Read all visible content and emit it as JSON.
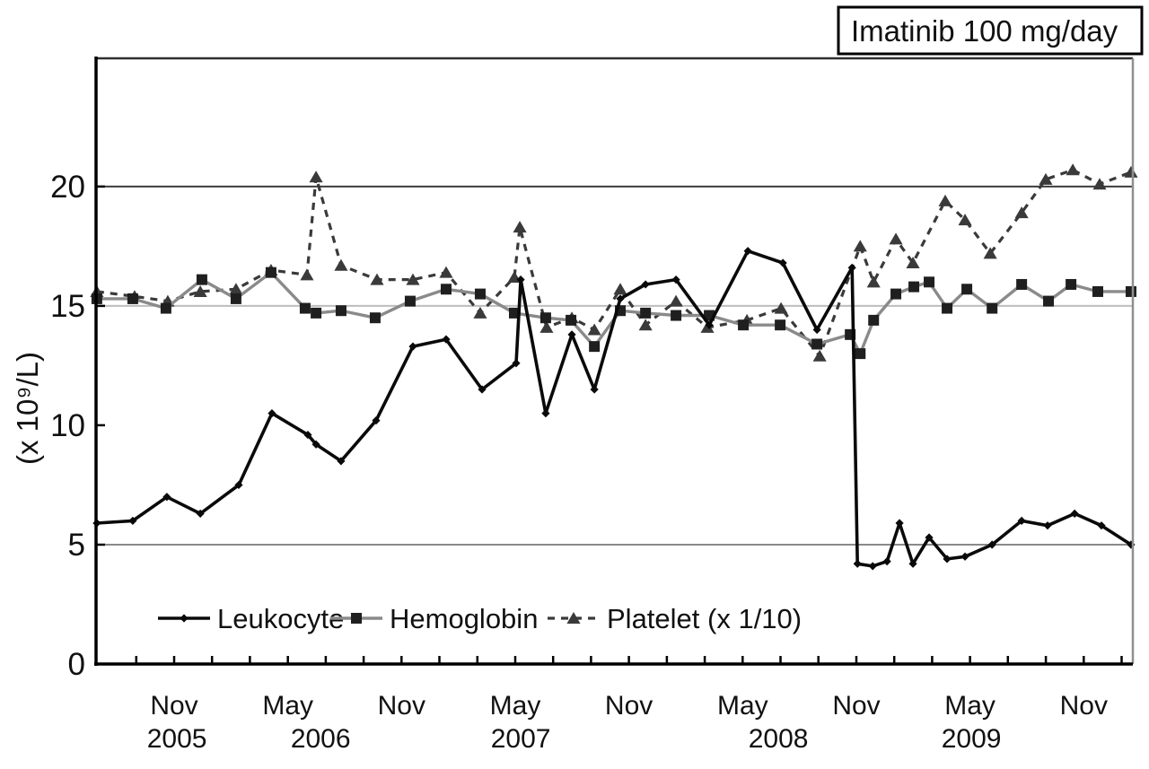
{
  "annotation": {
    "label": "Imatinib 100 mg/day"
  },
  "y_axis": {
    "label": "(x 10⁹/L)",
    "ticks": [
      0,
      5,
      10,
      15,
      20
    ],
    "max": 25.37,
    "gridlines": [
      {
        "v": 5,
        "color": "#8a8a8a",
        "w": 2
      },
      {
        "v": 15,
        "color": "#bdbdbd",
        "w": 2
      },
      {
        "v": 20,
        "color": "#3d3d3d",
        "w": 2
      }
    ]
  },
  "x_axis": {
    "tick_start": 2005.7083,
    "tick_step": 0.1666667,
    "tick_end": 2010.05,
    "month_labels": [
      {
        "label": "Nov",
        "t": 2005.875
      },
      {
        "label": "May",
        "t": 2006.375
      },
      {
        "label": "Nov",
        "t": 2006.875
      },
      {
        "label": "May",
        "t": 2007.375
      },
      {
        "label": "Nov",
        "t": 2007.875
      },
      {
        "label": "May",
        "t": 2008.375
      },
      {
        "label": "Nov",
        "t": 2008.875
      },
      {
        "label": "May",
        "t": 2009.375
      },
      {
        "label": "Nov",
        "t": 2009.875
      }
    ],
    "year_labels": [
      {
        "label": "2005",
        "t": 2005.887
      },
      {
        "label": "2006",
        "t": 2006.519
      },
      {
        "label": "2007",
        "t": 2007.399
      },
      {
        "label": "2008",
        "t": 2008.532
      },
      {
        "label": "2009",
        "t": 2009.381
      }
    ]
  },
  "legend": {
    "items": [
      {
        "series": "leukocyte",
        "label": "Leukocyte"
      },
      {
        "series": "hemoglobin",
        "label": "Hemoglobin"
      },
      {
        "series": "platelet",
        "label": "Platelet (x 1/10)"
      }
    ]
  },
  "chart_data": {
    "type": "line",
    "title": "Imatinib 100 mg/day",
    "ylabel": "(x 10⁹/L)",
    "x_unit": "decimal_year",
    "xlim": [
      2005.5315,
      2010.091
    ],
    "ylim": [
      0,
      25.37
    ],
    "grid": "horizontal-partial",
    "legend_position": "bottom-inside",
    "series": [
      {
        "key": "leukocyte",
        "name": "Leukocyte",
        "marker": "diamond",
        "line_color": "#0a0a0a",
        "marker_color": "#0a0a0a",
        "line_width": 3.6,
        "marker_size": 4.6,
        "dash": null,
        "points": [
          [
            2005.535,
            5.9
          ],
          [
            2005.693,
            6.0
          ],
          [
            2005.843,
            7.0
          ],
          [
            2005.99,
            6.3
          ],
          [
            2006.159,
            7.5
          ],
          [
            2006.305,
            10.5
          ],
          [
            2006.463,
            9.6
          ],
          [
            2006.499,
            9.2
          ],
          [
            2006.609,
            8.5
          ],
          [
            2006.763,
            10.2
          ],
          [
            2006.925,
            13.3
          ],
          [
            2007.071,
            13.6
          ],
          [
            2007.229,
            11.5
          ],
          [
            2007.379,
            12.6
          ],
          [
            2007.399,
            16.1
          ],
          [
            2007.509,
            10.5
          ],
          [
            2007.624,
            13.8
          ],
          [
            2007.723,
            11.5
          ],
          [
            2007.837,
            15.3
          ],
          [
            2007.948,
            15.9
          ],
          [
            2008.082,
            16.1
          ],
          [
            2008.228,
            14.2
          ],
          [
            2008.398,
            17.3
          ],
          [
            2008.552,
            16.8
          ],
          [
            2008.702,
            14.0
          ],
          [
            2008.856,
            16.6
          ],
          [
            2008.88,
            4.2
          ],
          [
            2008.947,
            4.1
          ],
          [
            2009.01,
            4.3
          ],
          [
            2009.065,
            5.9
          ],
          [
            2009.124,
            4.2
          ],
          [
            2009.195,
            5.3
          ],
          [
            2009.274,
            4.4
          ],
          [
            2009.353,
            4.5
          ],
          [
            2009.472,
            5.0
          ],
          [
            2009.602,
            6.0
          ],
          [
            2009.716,
            5.8
          ],
          [
            2009.835,
            6.3
          ],
          [
            2009.953,
            5.8
          ],
          [
            2010.083,
            5.0
          ]
        ]
      },
      {
        "key": "hemoglobin",
        "name": "Hemoglobin",
        "marker": "square",
        "line_color": "#8a8a8a",
        "marker_color": "#1f1f1f",
        "line_width": 3.4,
        "marker_size": 6,
        "dash": null,
        "points": [
          [
            2005.535,
            15.3
          ],
          [
            2005.693,
            15.3
          ],
          [
            2005.839,
            14.9
          ],
          [
            2005.997,
            16.1
          ],
          [
            2006.147,
            15.3
          ],
          [
            2006.301,
            16.4
          ],
          [
            2006.451,
            14.9
          ],
          [
            2006.499,
            14.7
          ],
          [
            2006.609,
            14.8
          ],
          [
            2006.759,
            14.5
          ],
          [
            2006.913,
            15.2
          ],
          [
            2007.071,
            15.7
          ],
          [
            2007.221,
            15.5
          ],
          [
            2007.371,
            14.7
          ],
          [
            2007.509,
            14.5
          ],
          [
            2007.62,
            14.4
          ],
          [
            2007.723,
            13.3
          ],
          [
            2007.837,
            14.8
          ],
          [
            2007.948,
            14.7
          ],
          [
            2008.082,
            14.6
          ],
          [
            2008.228,
            14.6
          ],
          [
            2008.378,
            14.2
          ],
          [
            2008.54,
            14.2
          ],
          [
            2008.702,
            13.4
          ],
          [
            2008.848,
            13.8
          ],
          [
            2008.892,
            13.0
          ],
          [
            2008.951,
            14.4
          ],
          [
            2009.049,
            15.5
          ],
          [
            2009.128,
            15.8
          ],
          [
            2009.195,
            16.0
          ],
          [
            2009.274,
            14.9
          ],
          [
            2009.361,
            15.7
          ],
          [
            2009.472,
            14.9
          ],
          [
            2009.602,
            15.9
          ],
          [
            2009.72,
            15.2
          ],
          [
            2009.819,
            15.9
          ],
          [
            2009.937,
            15.6
          ],
          [
            2010.083,
            15.6
          ]
        ]
      },
      {
        "key": "platelet",
        "name": "Platelet (x 1/10)",
        "marker": "triangle",
        "line_color": "#3a3a3a",
        "marker_color": "#3a3a3a",
        "line_width": 3.2,
        "marker_size": 7,
        "dash": "8 7",
        "points": [
          [
            2005.535,
            15.6
          ],
          [
            2005.701,
            15.4
          ],
          [
            2005.847,
            15.2
          ],
          [
            2005.99,
            15.6
          ],
          [
            2006.147,
            15.7
          ],
          [
            2006.301,
            16.5
          ],
          [
            2006.459,
            16.3
          ],
          [
            2006.499,
            20.4
          ],
          [
            2006.609,
            16.7
          ],
          [
            2006.767,
            16.1
          ],
          [
            2006.925,
            16.1
          ],
          [
            2007.071,
            16.4
          ],
          [
            2007.221,
            14.7
          ],
          [
            2007.371,
            16.2
          ],
          [
            2007.395,
            18.3
          ],
          [
            2007.513,
            14.1
          ],
          [
            2007.624,
            14.5
          ],
          [
            2007.723,
            14.0
          ],
          [
            2007.837,
            15.7
          ],
          [
            2007.948,
            14.2
          ],
          [
            2008.082,
            15.2
          ],
          [
            2008.22,
            14.1
          ],
          [
            2008.394,
            14.4
          ],
          [
            2008.544,
            14.9
          ],
          [
            2008.714,
            12.9
          ],
          [
            2008.892,
            17.5
          ],
          [
            2008.951,
            16.0
          ],
          [
            2009.049,
            17.8
          ],
          [
            2009.124,
            16.8
          ],
          [
            2009.266,
            19.4
          ],
          [
            2009.353,
            18.6
          ],
          [
            2009.464,
            17.2
          ],
          [
            2009.602,
            18.9
          ],
          [
            2009.708,
            20.3
          ],
          [
            2009.827,
            20.7
          ],
          [
            2009.945,
            20.1
          ],
          [
            2010.083,
            20.6
          ]
        ]
      }
    ]
  }
}
